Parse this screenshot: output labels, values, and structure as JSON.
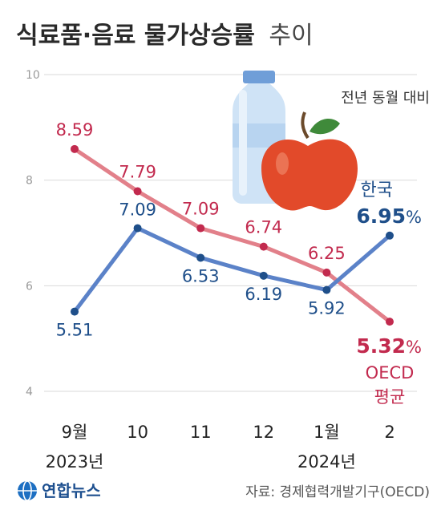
{
  "title": {
    "bold": "식료품·음료 물가상승률",
    "light": "추이"
  },
  "unit_note": "전년 동월 대비",
  "source": "자료: 경제협력개발기구(OECD)",
  "logo_text": "연합뉴스",
  "colors": {
    "korea": "#5b82c8",
    "korea_dark": "#1f4f8a",
    "oecd": "#e2808a",
    "oecd_dark": "#c22a4e",
    "grid": "#d9d9d9"
  },
  "chart_data": {
    "type": "line",
    "categories": [
      "9월",
      "10",
      "11",
      "12",
      "1월",
      "2"
    ],
    "year_labels": [
      {
        "category_index": 0,
        "text": "2023년"
      },
      {
        "category_index": 4,
        "text": "2024년"
      }
    ],
    "ylim": [
      4,
      10
    ],
    "yticks": [
      4,
      6,
      8,
      10
    ],
    "grid": true,
    "series": [
      {
        "name": "한국",
        "values": [
          5.51,
          7.09,
          6.53,
          6.19,
          5.92,
          6.95
        ],
        "labels": [
          "5.51",
          "7.09",
          "6.53",
          "6.19",
          "5.92",
          "6.95"
        ],
        "end_value": "6.95",
        "end_unit": "%"
      },
      {
        "name": "OECD 평균",
        "name_lines": [
          "OECD",
          "평균"
        ],
        "values": [
          8.59,
          7.79,
          7.09,
          6.74,
          6.25,
          5.32
        ],
        "labels": [
          "8.59",
          "7.79",
          "7.09",
          "6.74",
          "6.25",
          "5.32"
        ],
        "end_value": "5.32",
        "end_unit": "%"
      }
    ]
  }
}
